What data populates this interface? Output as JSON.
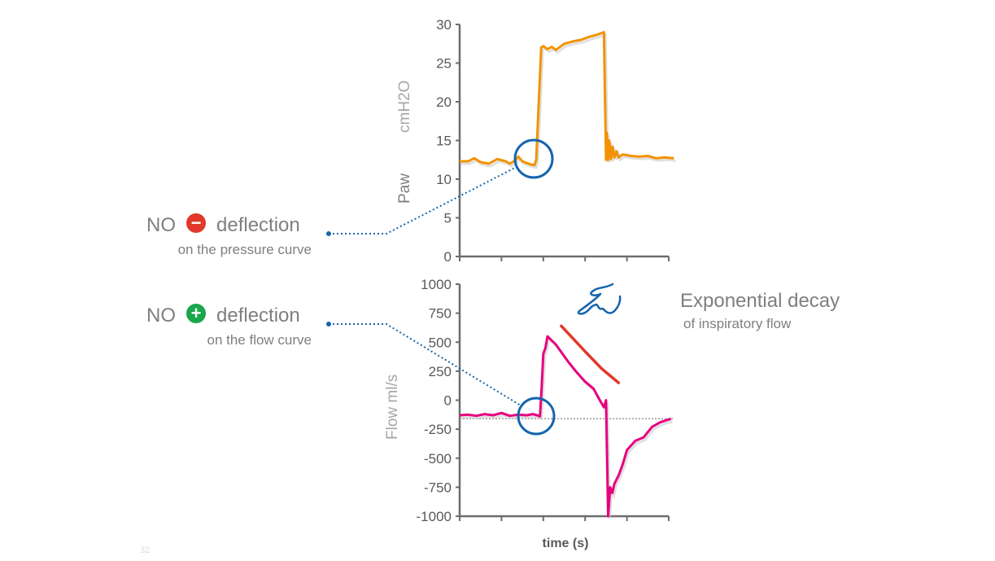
{
  "annotations": {
    "pressure": {
      "no": "NO",
      "icon": "minus-circle-icon",
      "icon_color": "#e0382a",
      "word": "deflection",
      "sub": "on the pressure curve"
    },
    "flow": {
      "no": "NO",
      "icon": "plus-circle-icon",
      "icon_color": "#1aa64b",
      "word": "deflection",
      "sub": "on the flow curve"
    },
    "decay": {
      "title": "Exponential decay",
      "sub": "of inspiratory flow",
      "curve_color": "#e0382a"
    },
    "hand_icon": "pointing-hand-icon",
    "page_number": "32"
  },
  "chart_data": [
    {
      "type": "line",
      "ylabel": "Paw",
      "yunit": "cmH2O",
      "ylim": [
        0,
        30
      ],
      "yticks": [
        0,
        5,
        10,
        15,
        20,
        25,
        30
      ],
      "xlim": [
        0,
        5
      ],
      "xticks": [
        0,
        1,
        2,
        3,
        4,
        5
      ],
      "color": "#f39200",
      "x": [
        0,
        0.2,
        0.35,
        0.5,
        0.7,
        0.9,
        1.1,
        1.2,
        1.3,
        1.4,
        1.5,
        1.6,
        1.7,
        1.79,
        1.83,
        1.95,
        2.0,
        2.1,
        2.2,
        2.3,
        2.5,
        2.7,
        2.9,
        3.1,
        3.3,
        3.45,
        3.5,
        3.52,
        3.55,
        3.58,
        3.62,
        3.66,
        3.7,
        3.75,
        3.8,
        3.9,
        4.1,
        4.3,
        4.5,
        4.7,
        4.9,
        5.12
      ],
      "y": [
        12.3,
        12.3,
        12.7,
        12.2,
        12.0,
        12.6,
        12.3,
        12.0,
        12.3,
        12.9,
        12.3,
        12.1,
        11.9,
        11.8,
        12.5,
        27.0,
        27.2,
        26.8,
        27.1,
        26.7,
        27.5,
        27.8,
        28.0,
        28.4,
        28.7,
        29.0,
        12.5,
        16.0,
        12.5,
        15.0,
        12.6,
        14.2,
        12.8,
        13.6,
        12.8,
        13.2,
        13.0,
        12.9,
        13.0,
        12.7,
        12.8,
        12.7
      ]
    },
    {
      "type": "line",
      "ylabel": "Flow ml/s",
      "xlabel": "time (s)",
      "ylim": [
        -1000,
        1000
      ],
      "yticks": [
        1000,
        750,
        500,
        250,
        0,
        -250,
        -500,
        -750,
        -1000
      ],
      "xlim": [
        0,
        5
      ],
      "xticks": [
        0,
        1,
        2,
        3,
        4,
        5
      ],
      "color": "#e6007e",
      "reference_line": -160,
      "x": [
        0,
        0.2,
        0.4,
        0.6,
        0.8,
        1.0,
        1.2,
        1.4,
        1.6,
        1.75,
        1.85,
        1.92,
        1.96,
        2.0,
        2.05,
        2.1,
        2.3,
        2.6,
        2.8,
        3.0,
        3.2,
        3.35,
        3.45,
        3.5,
        3.55,
        3.6,
        3.65,
        3.7,
        3.8,
        3.9,
        4.0,
        4.2,
        4.4,
        4.6,
        4.8,
        5.05
      ],
      "y": [
        -130,
        -125,
        -135,
        -120,
        -130,
        -110,
        -135,
        -125,
        -130,
        -120,
        -130,
        -140,
        100,
        400,
        450,
        550,
        480,
        330,
        240,
        160,
        100,
        0,
        -60,
        0,
        -1000,
        -750,
        -800,
        -720,
        -650,
        -550,
        -430,
        -350,
        -320,
        -230,
        -190,
        -160
      ]
    },
    {
      "type": "line",
      "name": "",
      "x": [
        2.43,
        3.0,
        3.4,
        3.8
      ],
      "y": [
        640,
        420,
        270,
        150
      ],
      "role": "exponential-decay-curve"
    }
  ]
}
